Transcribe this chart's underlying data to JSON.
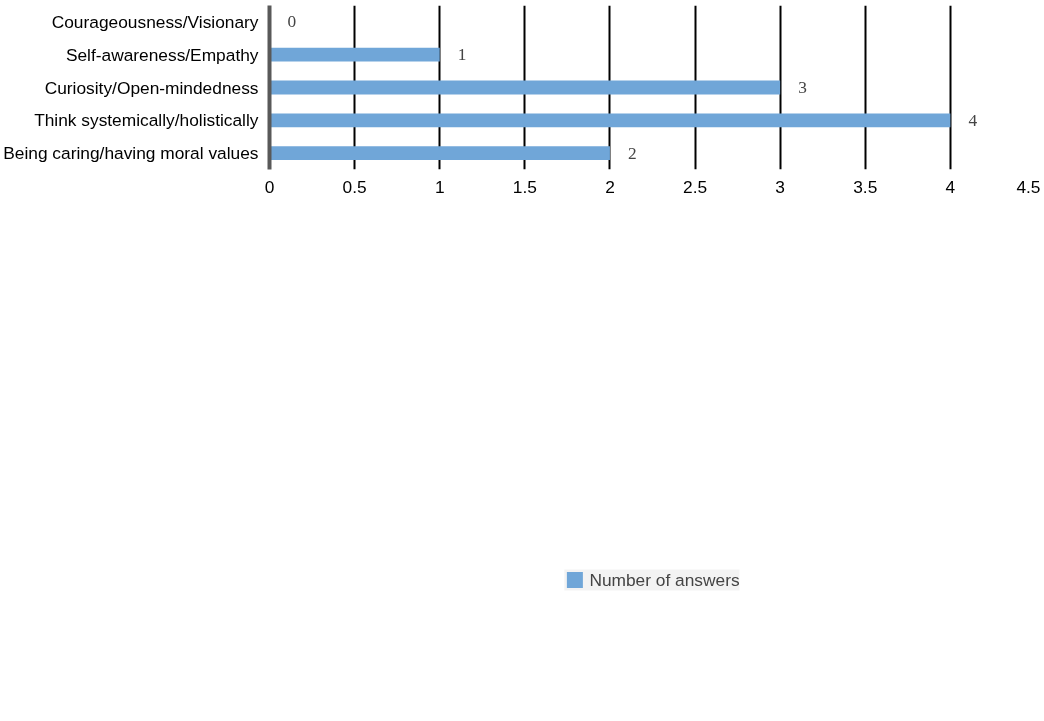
{
  "chart_data": {
    "type": "bar",
    "orientation": "horizontal",
    "categories": [
      "Courageousness/Visionary",
      "Self-awareness/Empathy",
      "Curiosity/Open-mindedness",
      "Think systemically/holistically",
      "Being caring/having moral values"
    ],
    "series": [
      {
        "name": "Number of answers",
        "color": "#70a6d8",
        "values": [
          0,
          1,
          3,
          4,
          2
        ]
      }
    ],
    "xlim": [
      0,
      4.5
    ],
    "xticks": [
      0,
      0.5,
      1,
      1.5,
      2,
      2.5,
      3,
      3.5,
      4,
      4.5
    ],
    "grid": "x",
    "legend": "bottom",
    "data_labels": true
  }
}
